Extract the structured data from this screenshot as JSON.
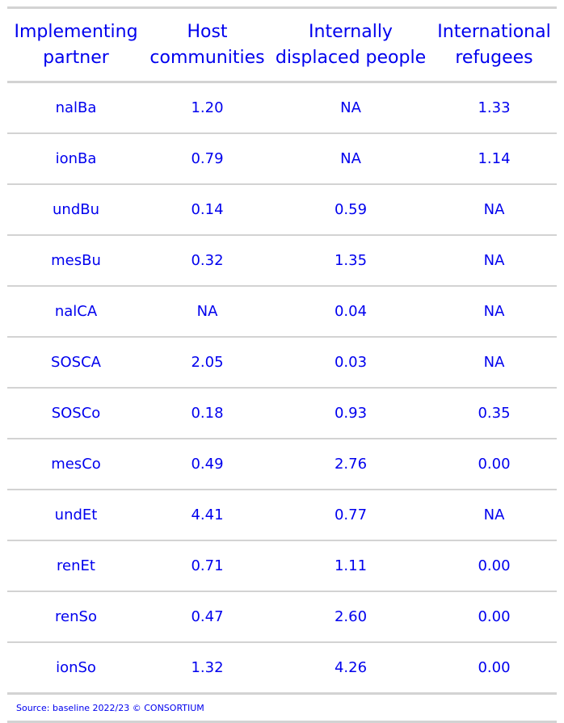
{
  "chart_data": {
    "type": "table",
    "columns": [
      "Implementing\npartner",
      "Host\ncommunities",
      "Internally\ndisplaced people",
      "International\nrefugees"
    ],
    "rows": [
      [
        "nalBa",
        "1.20",
        "NA",
        "1.33"
      ],
      [
        "ionBa",
        "0.79",
        "NA",
        "1.14"
      ],
      [
        "undBu",
        "0.14",
        "0.59",
        "NA"
      ],
      [
        "mesBu",
        "0.32",
        "1.35",
        "NA"
      ],
      [
        "nalCA",
        "NA",
        "0.04",
        "NA"
      ],
      [
        "SOSCA",
        "2.05",
        "0.03",
        "NA"
      ],
      [
        "SOSCo",
        "0.18",
        "0.93",
        "0.35"
      ],
      [
        "mesCo",
        "0.49",
        "2.76",
        "0.00"
      ],
      [
        "undEt",
        "4.41",
        "0.77",
        "NA"
      ],
      [
        "renEt",
        "0.71",
        "1.11",
        "0.00"
      ],
      [
        "renSo",
        "0.47",
        "2.60",
        "0.00"
      ],
      [
        "ionSo",
        "1.32",
        "4.26",
        "0.00"
      ]
    ],
    "source": "Source: baseline 2022/23 © CONSORTIUM"
  },
  "colors": {
    "text": "#0000ee",
    "rule": "#d3d3d3"
  }
}
